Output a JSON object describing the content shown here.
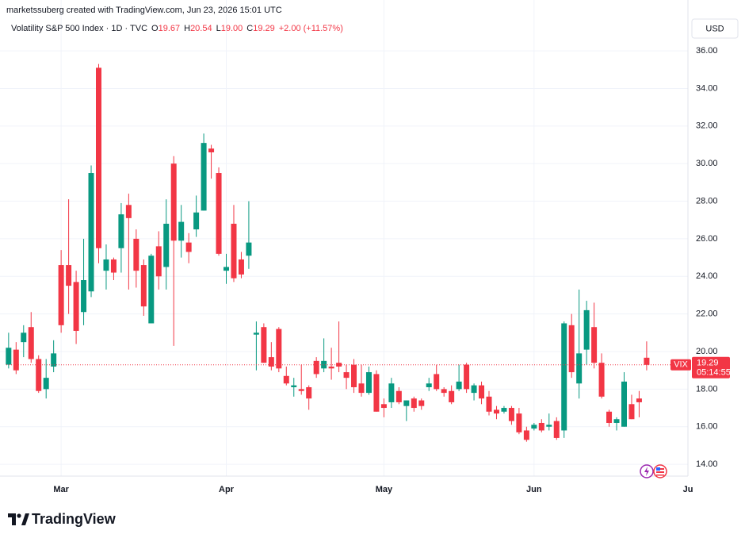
{
  "header": {
    "credit": "marketssuberg created with TradingView.com, Jun 23, 2026 15:01 UTC",
    "currency": "USD",
    "brand": "TradingView"
  },
  "chart_data": {
    "type": "candlestick",
    "title": "Volatility S&P 500 Index · 1D · TVC",
    "legend": [
      {
        "key": "O",
        "value": "19.67"
      },
      {
        "key": "H",
        "value": "20.54"
      },
      {
        "key": "L",
        "value": "19.00"
      },
      {
        "key": "C",
        "value": "19.29"
      }
    ],
    "change": "+2.00 (+11.57%)",
    "last_price": {
      "symbol": "VIX",
      "label": "19.29",
      "countdown": "05:14:55"
    },
    "up_color": "#089981",
    "down_color": "#f23645",
    "categories": [
      null,
      null,
      null,
      null,
      null,
      null,
      null,
      null,
      null,
      null,
      null,
      null,
      null,
      null,
      null,
      null,
      null,
      null,
      null,
      null,
      null,
      null,
      null,
      null,
      null,
      null,
      null,
      null,
      null,
      null,
      null,
      null,
      null,
      null,
      null,
      null,
      null,
      null,
      null,
      null,
      null,
      null,
      null,
      null,
      null,
      null,
      null,
      null,
      null,
      null,
      null,
      null,
      null,
      null,
      null,
      null,
      null,
      null,
      null,
      null,
      null,
      null,
      null,
      null,
      null,
      null,
      null,
      null,
      null,
      null,
      null,
      null,
      null,
      null,
      null,
      null,
      null,
      null,
      null,
      null,
      null,
      null,
      null,
      null,
      null,
      null
    ],
    "series": [
      {
        "name": "VIX",
        "open": [
          19.3,
          20.1,
          20.5,
          21.3,
          19.6,
          18.0,
          19.2,
          24.6,
          24.6,
          23.7,
          22.1,
          23.2,
          35.1,
          24.3,
          24.9,
          25.5,
          27.8,
          26.0,
          24.6,
          21.5,
          25.6,
          24.5,
          30.0,
          25.9,
          25.8,
          26.5,
          27.5,
          30.8,
          29.5,
          24.3,
          26.8,
          24.9,
          25.1,
          20.9,
          21.3,
          19.7,
          21.2,
          18.7,
          18.1,
          18.0,
          18.1,
          19.5,
          19.1,
          19.2,
          19.4,
          18.9,
          19.3,
          18.3,
          17.8,
          18.8,
          17.2,
          17.3,
          17.9,
          17.1,
          17.5,
          17.4,
          18.1,
          18.8,
          18.0,
          17.9,
          18.0,
          19.3,
          17.8,
          18.2,
          17.6,
          16.9,
          16.8,
          17.0,
          16.7,
          15.8,
          15.9,
          16.2,
          16.0,
          16.3,
          15.8,
          21.4,
          18.3,
          20.1,
          21.3,
          19.4,
          16.8,
          16.2,
          16.0,
          17.2,
          17.5,
          19.67
        ],
        "high": [
          21.0,
          20.5,
          21.4,
          22.1,
          19.8,
          19.6,
          20.6,
          25.4,
          28.1,
          24.3,
          26.0,
          29.9,
          35.3,
          25.7,
          25.0,
          27.9,
          28.4,
          26.5,
          24.9,
          25.2,
          26.4,
          28.1,
          30.4,
          27.8,
          26.3,
          28.3,
          31.6,
          31.0,
          29.8,
          25.2,
          27.8,
          25.3,
          28.0,
          21.6,
          21.5,
          20.5,
          21.3,
          19.2,
          18.6,
          19.3,
          18.2,
          19.7,
          20.7,
          20.2,
          21.6,
          19.3,
          19.6,
          19.3,
          19.2,
          19.0,
          17.5,
          18.6,
          18.1,
          17.4,
          17.6,
          17.5,
          18.6,
          19.3,
          18.1,
          18.2,
          19.3,
          19.4,
          18.3,
          18.4,
          17.9,
          17.1,
          17.1,
          17.1,
          17.0,
          16.0,
          16.2,
          16.4,
          16.7,
          16.5,
          21.6,
          22.0,
          23.3,
          22.7,
          22.6,
          19.9,
          16.9,
          16.5,
          18.9,
          17.7,
          17.9,
          20.54
        ],
        "low": [
          19.1,
          18.8,
          19.7,
          19.4,
          17.8,
          17.5,
          18.9,
          21.0,
          22.0,
          20.4,
          21.4,
          22.9,
          24.7,
          23.3,
          23.8,
          24.2,
          23.3,
          23.4,
          21.9,
          21.5,
          23.3,
          23.3,
          20.3,
          25.0,
          24.7,
          26.1,
          27.5,
          29.2,
          25.1,
          23.6,
          23.7,
          23.9,
          24.4,
          19.0,
          19.4,
          19.0,
          18.9,
          18.2,
          17.6,
          17.7,
          16.9,
          18.6,
          18.9,
          18.5,
          18.9,
          18.0,
          17.8,
          17.6,
          17.7,
          16.8,
          16.5,
          17.0,
          17.2,
          16.3,
          16.8,
          16.9,
          17.9,
          17.9,
          17.6,
          17.2,
          17.9,
          17.8,
          17.4,
          17.2,
          16.6,
          16.4,
          16.7,
          16.1,
          15.6,
          15.2,
          15.8,
          15.7,
          15.8,
          15.3,
          15.4,
          18.6,
          17.5,
          19.3,
          19.1,
          17.5,
          16.0,
          15.8,
          16.0,
          16.4,
          16.5,
          19
        ],
        "close": [
          20.2,
          19.0,
          21.0,
          19.6,
          17.9,
          18.6,
          19.9,
          21.4,
          23.5,
          21.1,
          23.8,
          29.5,
          25.5,
          24.9,
          24.2,
          27.3,
          27.1,
          24.3,
          22.4,
          25.1,
          24.0,
          26.8,
          25.9,
          26.9,
          25.3,
          27.4,
          31.1,
          30.6,
          25.2,
          24.5,
          23.9,
          24.1,
          25.8,
          21.0,
          19.4,
          19.2,
          19.1,
          18.3,
          18.2,
          17.9,
          17.5,
          18.8,
          19.5,
          19.1,
          19.2,
          18.6,
          18.1,
          17.8,
          18.9,
          16.8,
          17.0,
          18.3,
          17.3,
          17.4,
          17.0,
          17.1,
          18.3,
          18.0,
          17.8,
          17.3,
          18.4,
          18.0,
          18.2,
          17.5,
          16.8,
          16.7,
          17.0,
          16.3,
          15.7,
          15.3,
          16.1,
          15.8,
          16.1,
          15.4,
          21.5,
          18.9,
          19.9,
          22.2,
          19.4,
          17.6,
          16.2,
          16.4,
          18.4,
          16.4,
          17.3,
          19.29
        ]
      }
    ],
    "xlim": [
      -0.3,
      90.5
    ],
    "xticks": [
      {
        "value": 7,
        "label": "Mar"
      },
      {
        "value": 29,
        "label": "Apr"
      },
      {
        "value": 50,
        "label": "May"
      },
      {
        "value": 70,
        "label": "Jun"
      },
      {
        "value": 90.5,
        "label": "Ju"
      }
    ],
    "ylim": [
      13.37,
      37.44
    ],
    "yticks": [
      {
        "value": 14,
        "label": "14.00"
      },
      {
        "value": 16,
        "label": "16.00"
      },
      {
        "value": 18,
        "label": "18.00"
      },
      {
        "value": 20,
        "label": "20.00"
      },
      {
        "value": 22,
        "label": "22.00"
      },
      {
        "value": 24,
        "label": "24.00"
      },
      {
        "value": 26,
        "label": "26.00"
      },
      {
        "value": 28,
        "label": "28.00"
      },
      {
        "value": 30,
        "label": "30.00"
      },
      {
        "value": 32,
        "label": "32.00"
      },
      {
        "value": 34,
        "label": "34.00"
      },
      {
        "value": 36,
        "label": "36.00"
      }
    ],
    "grid": true
  }
}
